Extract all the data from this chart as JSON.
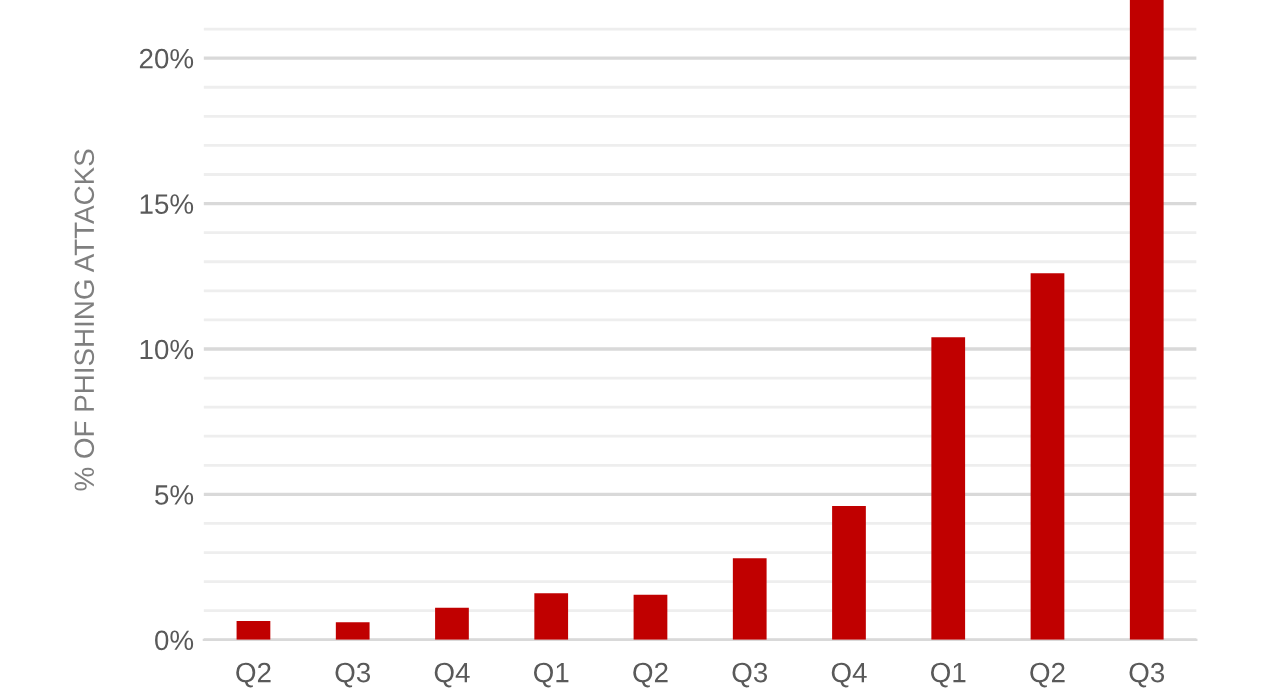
{
  "chart_data": {
    "type": "bar",
    "ylabel": "% OF PHISHING ATTACKS",
    "categories": [
      "Q2",
      "Q3",
      "Q4",
      "Q1",
      "Q2",
      "Q3",
      "Q4",
      "Q1",
      "Q2",
      "Q3"
    ],
    "values": [
      0.65,
      0.6,
      1.1,
      1.6,
      1.55,
      2.8,
      4.6,
      10.4,
      12.6,
      22
    ],
    "color": "#c00000",
    "ylim": [
      0,
      22
    ],
    "yticks": [
      {
        "value": 0,
        "label": "0%"
      },
      {
        "value": 1,
        "label": null
      },
      {
        "value": 2,
        "label": null
      },
      {
        "value": 3,
        "label": null
      },
      {
        "value": 4,
        "label": null
      },
      {
        "value": 5,
        "label": "5%"
      },
      {
        "value": 6,
        "label": null
      },
      {
        "value": 7,
        "label": null
      },
      {
        "value": 8,
        "label": null
      },
      {
        "value": 9,
        "label": null
      },
      {
        "value": 10,
        "label": "10%"
      },
      {
        "value": 11,
        "label": null
      },
      {
        "value": 12,
        "label": null
      },
      {
        "value": 13,
        "label": null
      },
      {
        "value": 14,
        "label": null
      },
      {
        "value": 15,
        "label": "15%"
      },
      {
        "value": 16,
        "label": null
      },
      {
        "value": 17,
        "label": null
      },
      {
        "value": 18,
        "label": null
      },
      {
        "value": 19,
        "label": null
      },
      {
        "value": 20,
        "label": "20%"
      },
      {
        "value": 21,
        "label": null
      }
    ],
    "grid": "y"
  }
}
